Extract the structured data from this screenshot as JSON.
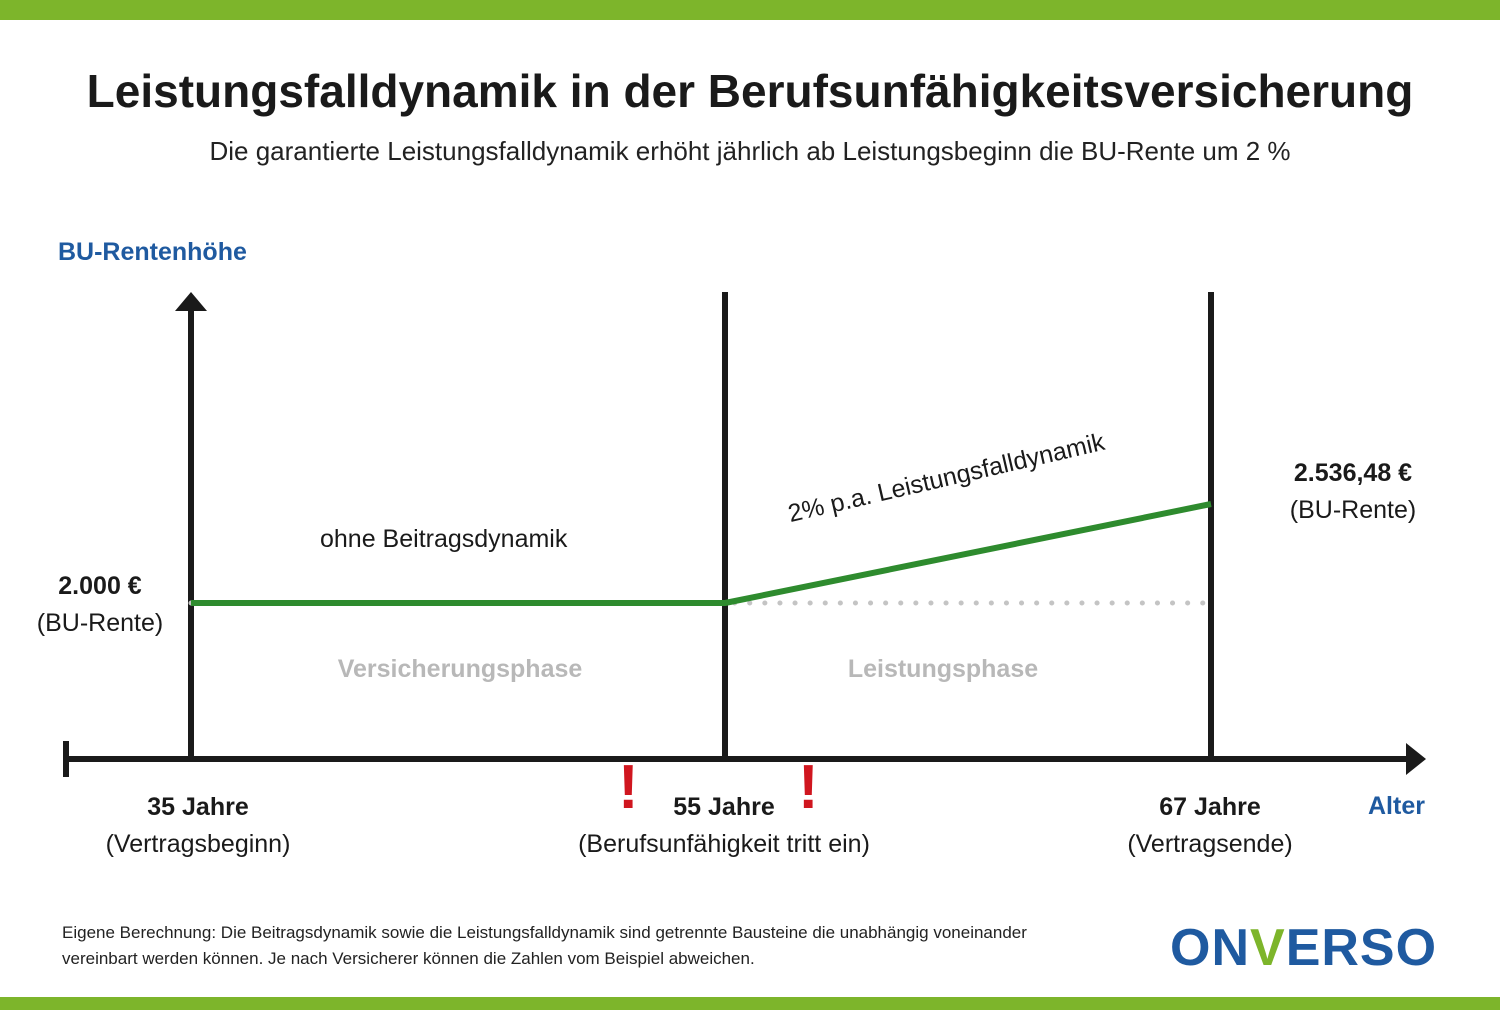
{
  "title": "Leistungsfalldynamik in der Berufsunfähigkeitsversicherung",
  "subtitle": "Die garantierte Leistungsfalldynamik erhöht jährlich ab Leistungsbeginn die BU-Rente um 2 %",
  "y_axis_label": "BU-Rentenhöhe",
  "x_axis_label": "Alter",
  "start_value": {
    "amount": "2.000 €",
    "note": "(BU-Rente)"
  },
  "end_value": {
    "amount": "2.536,48 €",
    "note": "(BU-Rente)"
  },
  "milestones": [
    {
      "age": "35 Jahre",
      "note": "(Vertragsbeginn)"
    },
    {
      "age": "55 Jahre",
      "note": "(Berufsunfähigkeit tritt ein)"
    },
    {
      "age": "67 Jahre",
      "note": "(Vertragsende)"
    }
  ],
  "phases": {
    "insurance": "Versicherungsphase",
    "benefit": "Leistungsphase"
  },
  "segments": {
    "flat": "ohne Beitragsdynamik",
    "growth": "2% p.a. Leistungsfalldynamik"
  },
  "warning_mark": "!",
  "footnote": "Eigene Berechnung: Die Beitragsdynamik sowie die Leistungsfalldynamik sind getrennte Bausteine die unabhängig voneinander vereinbart werden können. Je nach Versicherer können die Zahlen vom Beispiel abweichen.",
  "logo": {
    "part1": "ON",
    "part2": "V",
    "part3": "ERSO"
  },
  "colors": {
    "accent_green": "#7db52b",
    "line_green": "#2e8b2e",
    "label_blue": "#1f5aa0",
    "warning_red": "#d0161f",
    "phase_gray": "#b8b8b8"
  },
  "chart_data": {
    "type": "line",
    "x": [
      35,
      55,
      67
    ],
    "series": [
      {
        "values": [
          2000,
          2000,
          2536.48
        ]
      }
    ],
    "baseline": {
      "values": [
        2000,
        2000,
        2000
      ]
    },
    "ylabel": "BU-Rentenhöhe",
    "xlabel": "Alter"
  }
}
